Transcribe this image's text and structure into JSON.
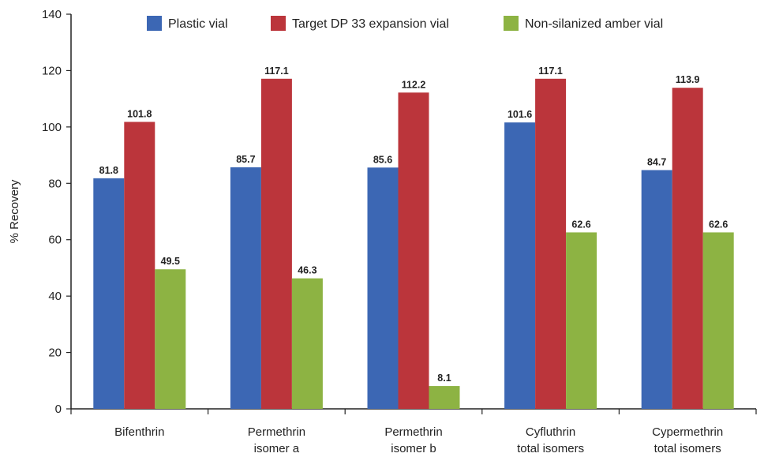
{
  "chart_data": {
    "type": "bar",
    "title": "",
    "xlabel": "",
    "ylabel": "% Recovery",
    "ylim": [
      0,
      140
    ],
    "yticks": [
      0,
      20,
      40,
      60,
      80,
      100,
      120,
      140
    ],
    "grid": false,
    "legend_position": "top",
    "categories": [
      [
        "Bifenthrin"
      ],
      [
        "Permethrin",
        "isomer a"
      ],
      [
        "Permethrin",
        "isomer b"
      ],
      [
        "Cyfluthrin",
        "total isomers"
      ],
      [
        "Cypermethrin",
        "total isomers"
      ]
    ],
    "series": [
      {
        "name": "Plastic vial",
        "color": "#3c67b4",
        "values": [
          81.8,
          85.7,
          85.6,
          101.6,
          84.7
        ],
        "labels": [
          "81.8",
          "85.7",
          "85.6",
          "101.6",
          "84.7"
        ]
      },
      {
        "name": "Target DP 33 expansion vial",
        "color": "#bb353b",
        "values": [
          101.8,
          117.1,
          112.2,
          117.1,
          113.9
        ],
        "labels": [
          "101.8",
          "117.1",
          "112.2",
          "117.1",
          "113.9"
        ]
      },
      {
        "name": "Non-silanized amber vial",
        "color": "#8db343",
        "values": [
          49.5,
          46.3,
          8.1,
          62.6,
          62.6
        ],
        "labels": [
          "49.5",
          "46.3",
          "8.1",
          "62.6",
          "62.6"
        ]
      }
    ]
  }
}
